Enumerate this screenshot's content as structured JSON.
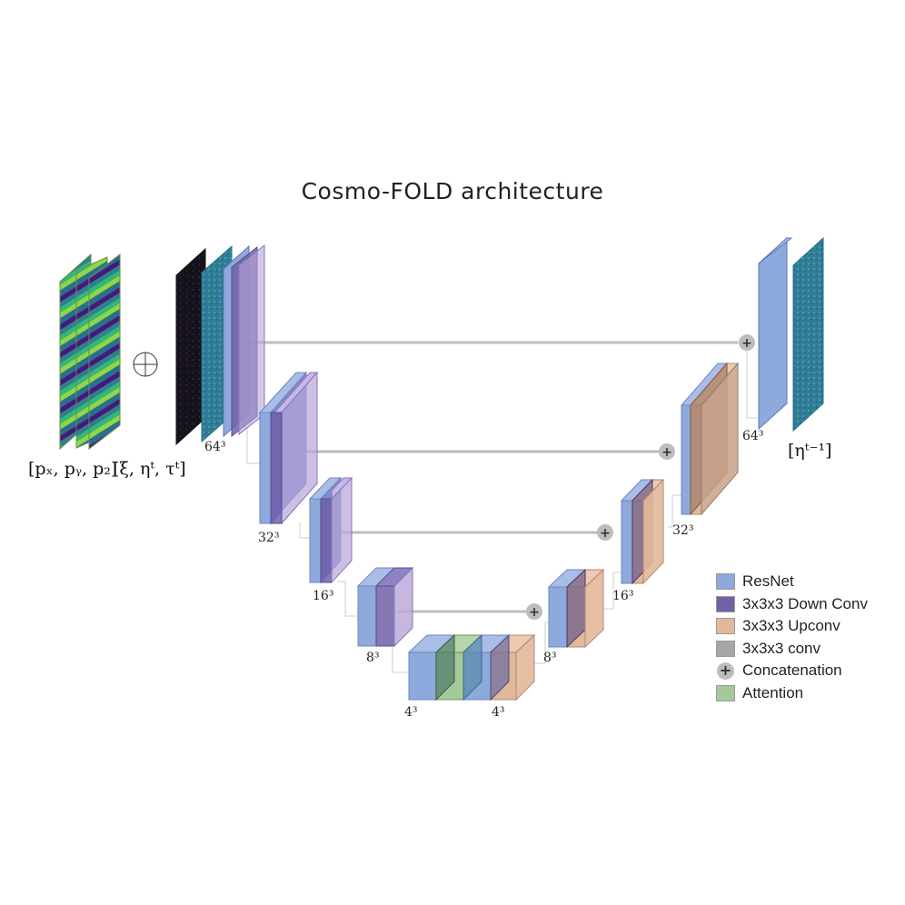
{
  "title": "Cosmo-FOLD architecture",
  "input_label_p": "[pₓ, pᵧ, p₂]",
  "input_label_vars": "[ξ, ηᵗ, τᵗ]",
  "output_label": "[ηᵗ⁻¹]",
  "resolution_labels": {
    "enc64": "64³",
    "enc32": "32³",
    "enc16": "16³",
    "enc8": "8³",
    "bot_left": "4³",
    "bot_right": "4³",
    "dec8": "8³",
    "dec16": "16³",
    "dec32": "32³",
    "dec64": "64³"
  },
  "legend": [
    {
      "label": "ResNet",
      "color": "#8ea9dc",
      "icon": "swatch"
    },
    {
      "label": "3x3x3 Down Conv",
      "color": "#7060a8",
      "icon": "swatch"
    },
    {
      "label": "3x3x3 Upconv",
      "color": "#e2b89a",
      "icon": "swatch"
    },
    {
      "label": "3x3x3 conv",
      "color": "#a6a6a6",
      "icon": "swatch"
    },
    {
      "label": "Concatenation",
      "color": "#bdbdbd",
      "icon": "plus-circle-icon"
    },
    {
      "label": "Attention",
      "color": "#a6c99a",
      "icon": "swatch"
    }
  ],
  "colors": {
    "resnet": "#8ea9dc",
    "downconv": "#7060a8",
    "upconv": "#e2b89a",
    "conv": "#a6a6a6",
    "attention": "#a6c99a",
    "skip_line": "#bdbdbd"
  }
}
